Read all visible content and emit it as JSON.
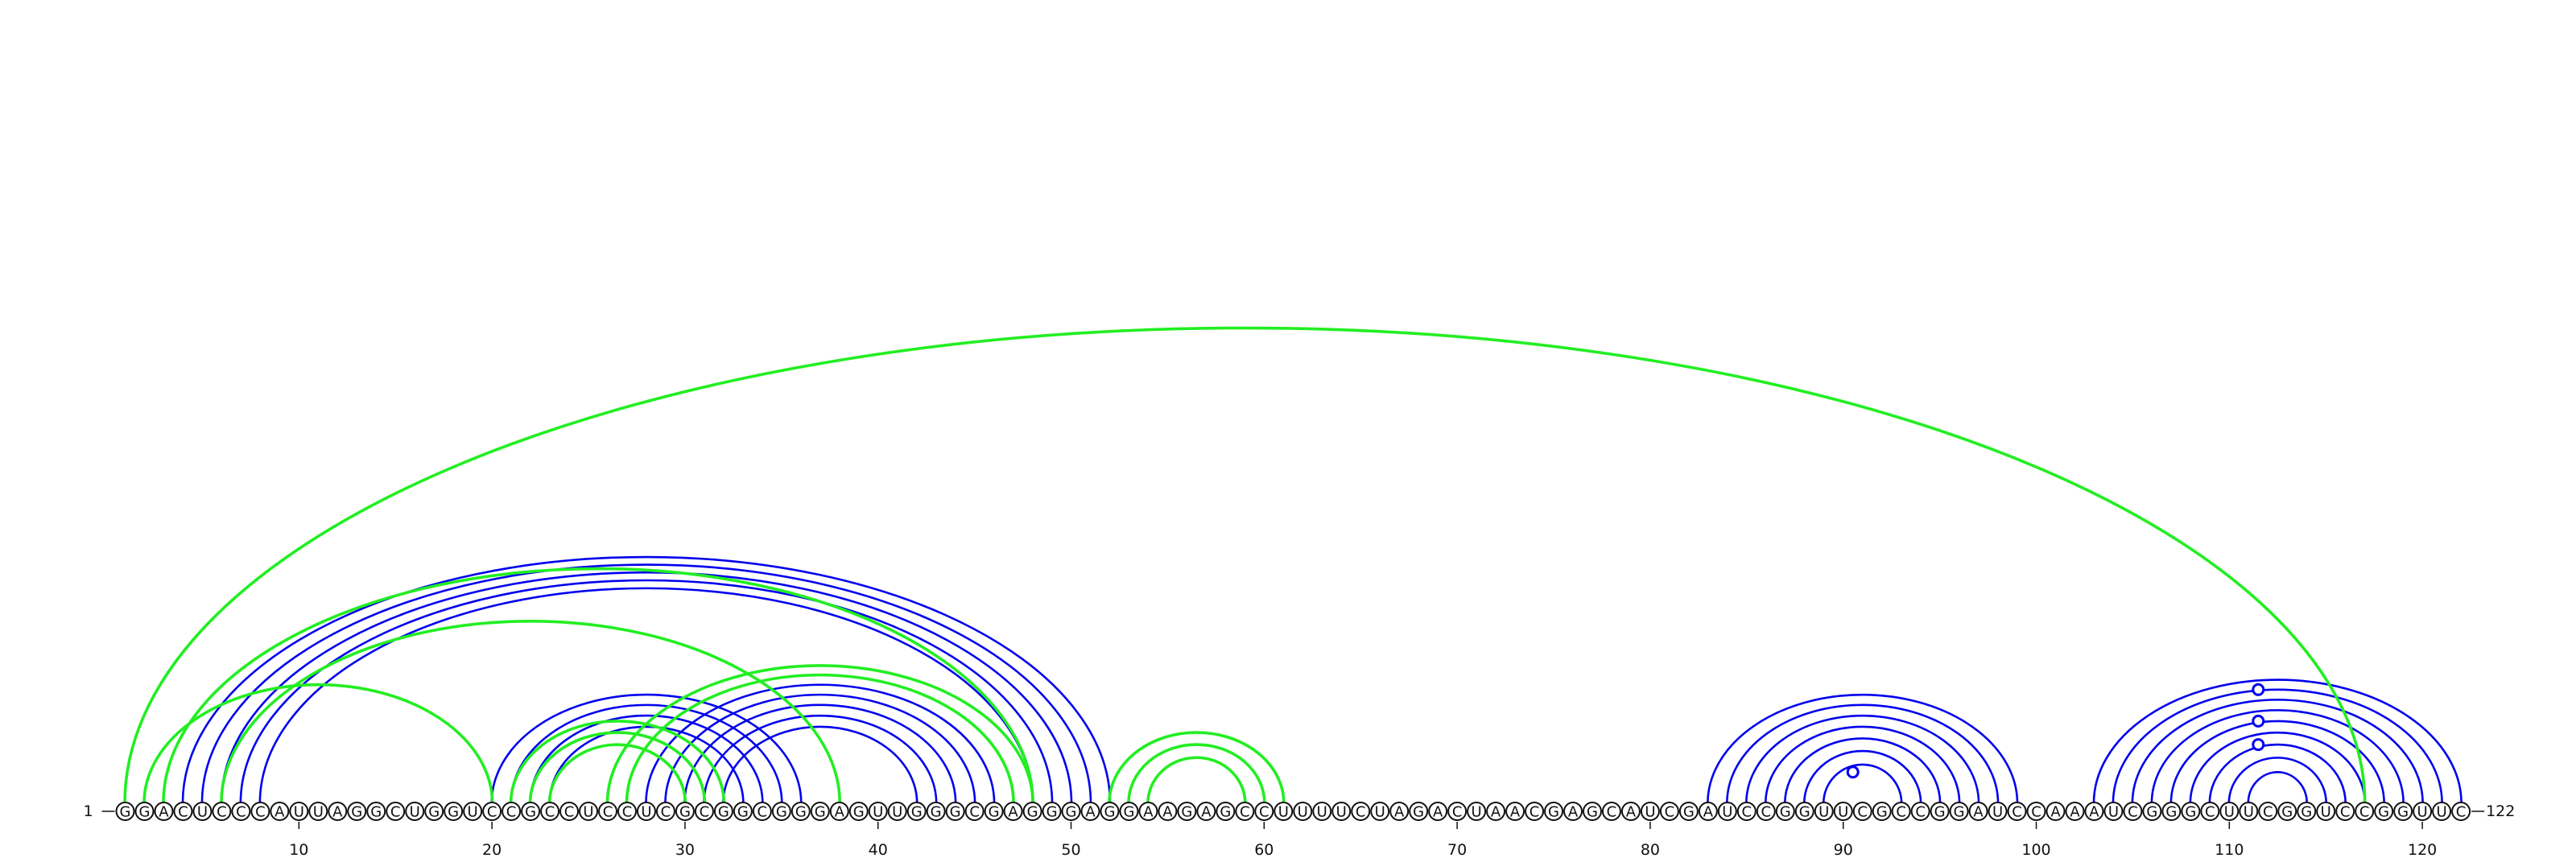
{
  "sequence": "GGACUCCCAUUAGGCUGGUCCGCCUCCUCGCGGCGGGAGUUGGGCGAGGGAGGAAGAGCCUUUUCUAGACUAACGAGCAUCGAUCCGGUUCGCCGGAUCCAAAUCGGGCUUCGGUCCGGUUC",
  "start_label": "1",
  "end_label": "122",
  "ticks": [
    {
      "pos": 10,
      "label": "10"
    },
    {
      "pos": 20,
      "label": "20"
    },
    {
      "pos": 30,
      "label": "30"
    },
    {
      "pos": 40,
      "label": "40"
    },
    {
      "pos": 50,
      "label": "50"
    },
    {
      "pos": 60,
      "label": "60"
    },
    {
      "pos": 70,
      "label": "70"
    },
    {
      "pos": 80,
      "label": "80"
    },
    {
      "pos": 90,
      "label": "90"
    },
    {
      "pos": 100,
      "label": "100"
    },
    {
      "pos": 110,
      "label": "110"
    },
    {
      "pos": 120,
      "label": "120"
    }
  ],
  "colors": {
    "blue": "#0000ee",
    "green": "#22ee22"
  },
  "blue_pairs": [
    [
      4,
      52
    ],
    [
      5,
      51
    ],
    [
      6,
      50
    ],
    [
      7,
      49
    ],
    [
      8,
      48
    ],
    [
      20,
      36
    ],
    [
      21,
      35
    ],
    [
      22,
      34
    ],
    [
      23,
      33
    ],
    [
      27,
      47
    ],
    [
      28,
      46
    ],
    [
      29,
      45
    ],
    [
      30,
      44
    ],
    [
      31,
      43
    ],
    [
      32,
      42
    ],
    [
      83,
      99
    ],
    [
      84,
      98
    ],
    [
      85,
      97
    ],
    [
      86,
      96
    ],
    [
      87,
      95
    ],
    [
      88,
      94
    ],
    [
      89,
      93
    ],
    [
      103,
      122
    ],
    [
      104,
      121
    ],
    [
      105,
      120
    ],
    [
      106,
      119
    ],
    [
      107,
      118
    ],
    [
      108,
      117
    ],
    [
      109,
      116
    ],
    [
      110,
      115
    ],
    [
      111,
      114
    ]
  ],
  "green_pairs": [
    [
      1,
      117
    ],
    [
      2,
      20
    ],
    [
      3,
      48
    ],
    [
      6,
      38
    ],
    [
      21,
      32
    ],
    [
      22,
      31
    ],
    [
      23,
      30
    ],
    [
      26,
      48
    ],
    [
      27,
      47
    ],
    [
      52,
      61
    ],
    [
      53,
      60
    ],
    [
      54,
      59
    ]
  ],
  "markers": [
    {
      "pos": 90.5,
      "pair": [
        89,
        92
      ]
    },
    {
      "pos": 111.5,
      "pair": [
        108,
        115
      ]
    },
    {
      "pos": 111.5,
      "pair": [
        106,
        117
      ]
    },
    {
      "pos": 111.5,
      "pair": [
        103,
        120
      ]
    }
  ]
}
